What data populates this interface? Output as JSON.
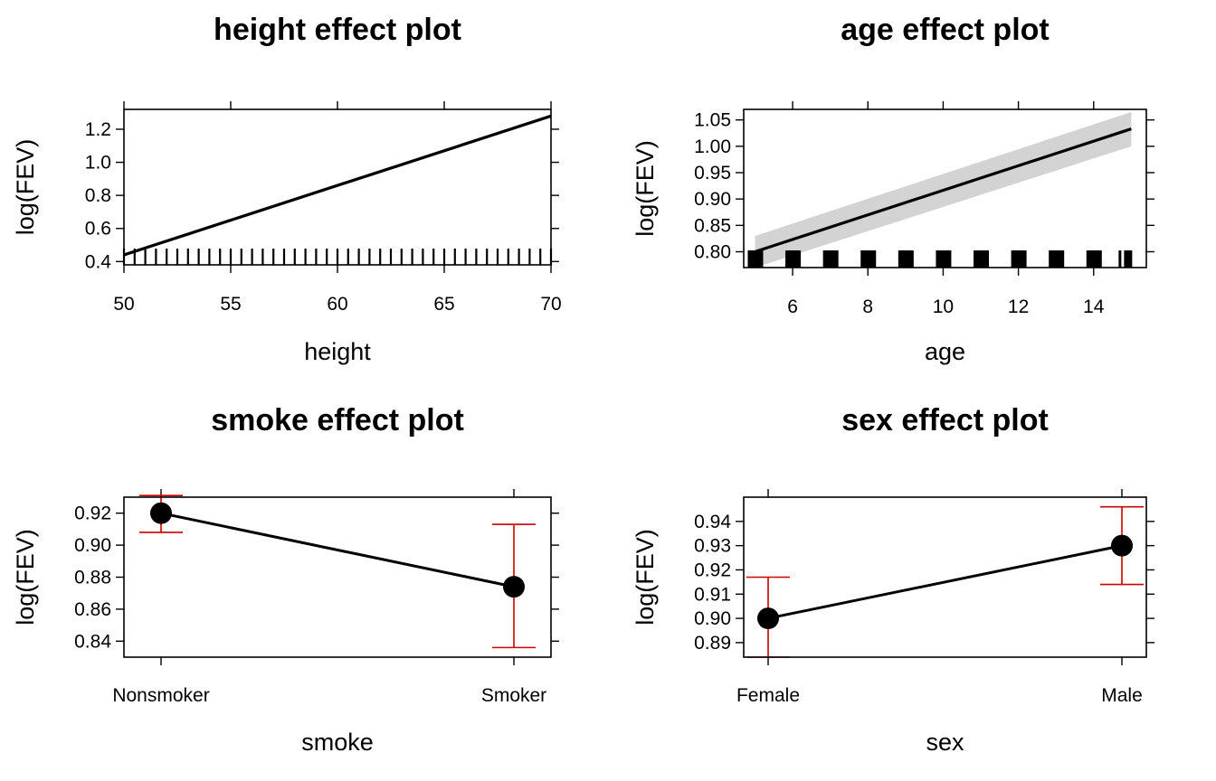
{
  "chart_data": [
    {
      "type": "line",
      "title": "height effect plot",
      "xlabel": "height",
      "ylabel": "log(FEV)",
      "xlim": [
        50,
        70
      ],
      "ylim": [
        0.38,
        1.32
      ],
      "x_ticks": [
        "50",
        "55",
        "60",
        "65",
        "70"
      ],
      "y_ticks": [
        "0.4",
        "0.6",
        "0.8",
        "1.0",
        "1.2"
      ],
      "series": [
        {
          "x": [
            50,
            70
          ],
          "values": [
            0.44,
            1.28
          ],
          "lower": [
            0.43,
            1.27
          ],
          "upper": [
            0.45,
            1.29
          ]
        }
      ],
      "rug": [
        50,
        50.5,
        51,
        51.5,
        52,
        52.5,
        53,
        53.5,
        54,
        54.5,
        55,
        55.5,
        56,
        56.5,
        57,
        57.5,
        58,
        58.5,
        59,
        59.5,
        60,
        60.5,
        61,
        61.5,
        62,
        62.5,
        63,
        63.5,
        64,
        64.5,
        65,
        65.5,
        66,
        66.5,
        67,
        67.5,
        68,
        68.5,
        69,
        69.5,
        70
      ]
    },
    {
      "type": "line",
      "title": "age effect plot",
      "xlabel": "age",
      "ylabel": "log(FEV)",
      "xlim": [
        4.7,
        15.4
      ],
      "ylim": [
        0.77,
        1.07
      ],
      "x_ticks": [
        "6",
        "8",
        "10",
        "12",
        "14"
      ],
      "y_ticks": [
        "0.80",
        "0.85",
        "0.90",
        "0.95",
        "1.00",
        "1.05"
      ],
      "series": [
        {
          "x": [
            5,
            15
          ],
          "values": [
            0.8,
            1.033
          ],
          "lower": [
            0.77,
            1.0
          ],
          "upper": [
            0.83,
            1.065
          ]
        }
      ],
      "rug": [
        5,
        6,
        7,
        8,
        9,
        10,
        11,
        12,
        13,
        14,
        15
      ]
    },
    {
      "type": "line",
      "title": "smoke effect plot",
      "xlabel": "smoke",
      "ylabel": "log(FEV)",
      "ylim": [
        0.83,
        0.93
      ],
      "categories": [
        "Nonsmoker",
        "Smoker"
      ],
      "y_ticks": [
        "0.84",
        "0.86",
        "0.88",
        "0.90",
        "0.92"
      ],
      "series": [
        {
          "values": [
            0.92,
            0.874
          ],
          "lower": [
            0.908,
            0.836
          ],
          "upper": [
            0.931,
            0.913
          ]
        }
      ]
    },
    {
      "type": "line",
      "title": "sex effect plot",
      "xlabel": "sex",
      "ylabel": "log(FEV)",
      "ylim": [
        0.884,
        0.95
      ],
      "categories": [
        "Female",
        "Male"
      ],
      "y_ticks": [
        "0.89",
        "0.90",
        "0.91",
        "0.92",
        "0.93",
        "0.94"
      ],
      "series": [
        {
          "values": [
            0.9,
            0.93
          ],
          "lower": [
            0.884,
            0.914
          ],
          "upper": [
            0.917,
            0.946
          ]
        }
      ]
    }
  ],
  "colors": {
    "line": "#000000",
    "band": "#d3d3d3",
    "errorbar": "#cc0000",
    "point": "#000000"
  }
}
